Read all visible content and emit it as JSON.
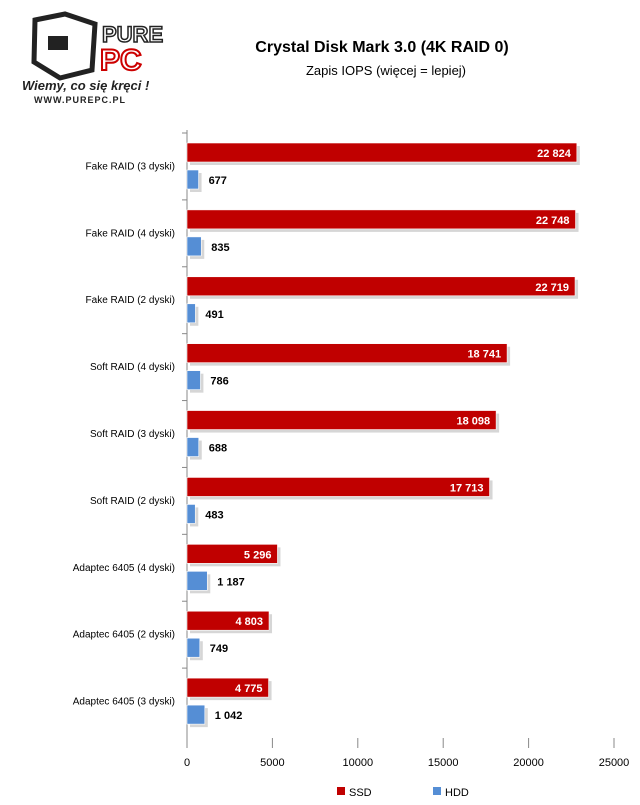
{
  "logo": {
    "text": "PURE PC",
    "tagline": "Wiemy, co się kręci !",
    "url": "www.purepc.pl"
  },
  "chart_data": {
    "type": "bar",
    "orientation": "horizontal",
    "title": "Crystal Disk Mark 3.0 (4K RAID 0)",
    "subtitle": "Zapis IOPS (więcej = lepiej)",
    "categories": [
      "Fake RAID (3 dyski)",
      "Fake RAID (4 dyski)",
      "Fake RAID (2 dyski)",
      "Soft RAID (4 dyski)",
      "Soft RAID (3 dyski)",
      "Soft RAID (2 dyski)",
      "Adaptec 6405 (4 dyski)",
      "Adaptec 6405 (2 dyski)",
      "Adaptec 6405 (3 dyski)"
    ],
    "series": [
      {
        "name": "SSD",
        "color": "#C00000",
        "values": [
          22824,
          22748,
          22719,
          18741,
          18098,
          17713,
          5296,
          4803,
          4775
        ],
        "labels": [
          "22 824",
          "22 748",
          "22 719",
          "18 741",
          "18 098",
          "17 713",
          "5 296",
          "4 803",
          "4 775"
        ]
      },
      {
        "name": "HDD",
        "color": "#558ED5",
        "values": [
          677,
          835,
          491,
          786,
          688,
          483,
          1187,
          749,
          1042
        ],
        "labels": [
          "677",
          "835",
          "491",
          "786",
          "688",
          "483",
          "1 187",
          "749",
          "1 042"
        ]
      }
    ],
    "xlim": [
      0,
      25000
    ],
    "xticks": [
      "0",
      "5000",
      "10000",
      "15000",
      "20000",
      "25000"
    ],
    "xlabel": "",
    "ylabel": "",
    "grid": false,
    "legend": "bottom"
  }
}
